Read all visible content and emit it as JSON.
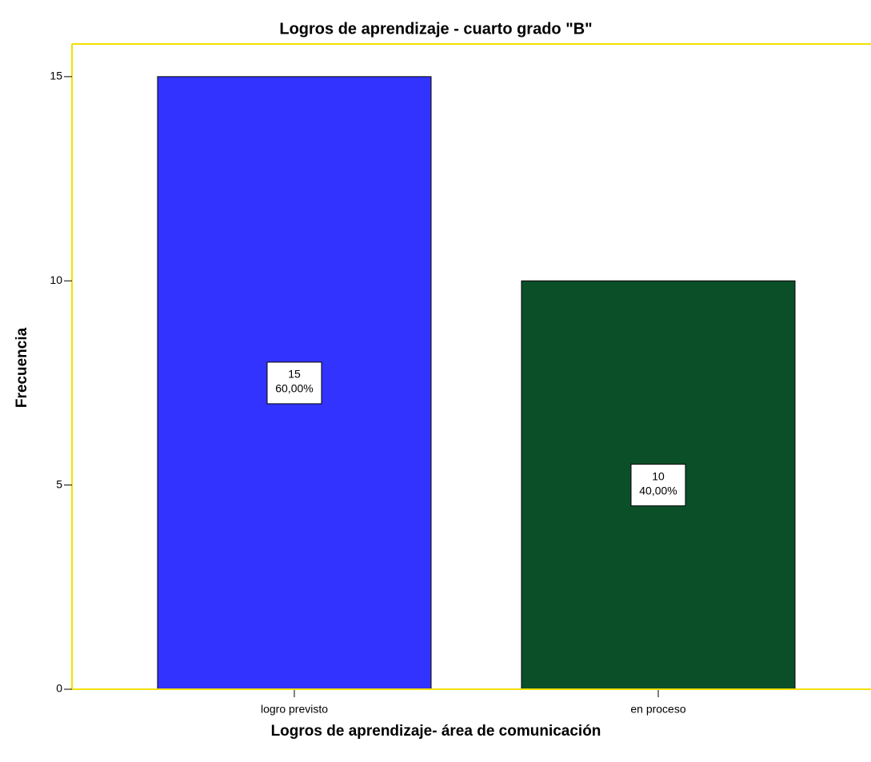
{
  "chart_data": {
    "type": "bar",
    "title": "Logros de aprendizaje - cuarto grado \"B\"",
    "x_label": "Logros de aprendizaje- área de comunicación",
    "y_label": "Frecuencia",
    "categories": [
      "logro previsto",
      "en proceso"
    ],
    "values": [
      15,
      10
    ],
    "percents": [
      60,
      40
    ],
    "percent_labels": [
      "60,00%",
      "40,00%"
    ],
    "colors": [
      "#3333ff",
      "#0b4f28"
    ],
    "ylim": [
      0,
      15.8
    ],
    "yticks": [
      0,
      5,
      10,
      15
    ]
  }
}
